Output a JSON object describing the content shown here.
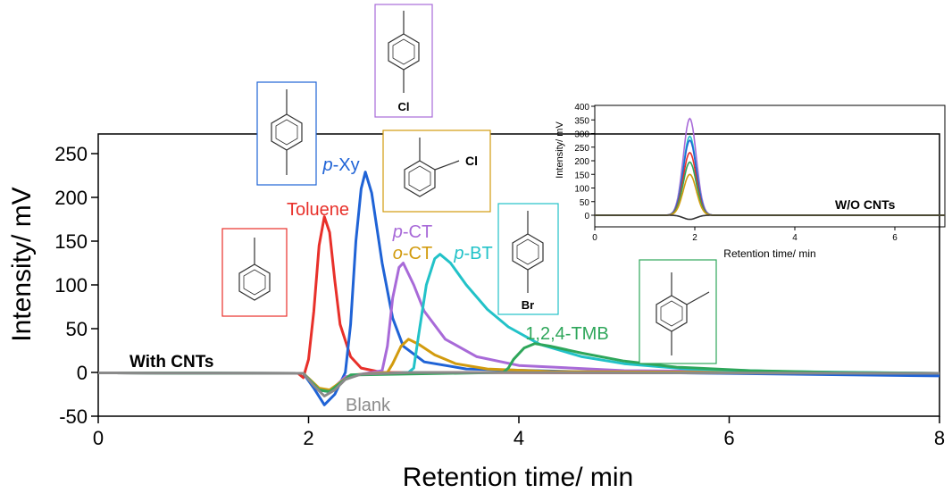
{
  "chart_data": [
    {
      "type": "line",
      "title": "",
      "xlabel": "Retention time/ min",
      "ylabel": "Intensity/ mV",
      "xlim": [
        0,
        8
      ],
      "ylim": [
        -50,
        270
      ],
      "x_ticks": [
        "0",
        "2",
        "4",
        "6",
        "8"
      ],
      "y_ticks": [
        "-50",
        "0",
        "50",
        "100",
        "150",
        "200",
        "250"
      ],
      "grid": false,
      "annotation": "With CNTs",
      "series": [
        {
          "name": "Toluene",
          "color": "#e8302a",
          "points": [
            [
              0,
              -0.5
            ],
            [
              1.9,
              -1
            ],
            [
              1.95,
              -6
            ],
            [
              2.0,
              15
            ],
            [
              2.05,
              70
            ],
            [
              2.1,
              145
            ],
            [
              2.15,
              178
            ],
            [
              2.2,
              160
            ],
            [
              2.25,
              105
            ],
            [
              2.3,
              55
            ],
            [
              2.4,
              18
            ],
            [
              2.5,
              5
            ],
            [
              2.7,
              0
            ],
            [
              8,
              -1
            ]
          ]
        },
        {
          "name": "p-Xy",
          "color": "#1f63d6",
          "points": [
            [
              0,
              -0.5
            ],
            [
              1.95,
              -1
            ],
            [
              2.05,
              -18
            ],
            [
              2.15,
              -37
            ],
            [
              2.25,
              -25
            ],
            [
              2.35,
              0
            ],
            [
              2.4,
              55
            ],
            [
              2.45,
              150
            ],
            [
              2.5,
              210
            ],
            [
              2.54,
              229
            ],
            [
              2.6,
              205
            ],
            [
              2.7,
              125
            ],
            [
              2.8,
              62
            ],
            [
              2.9,
              30
            ],
            [
              3.1,
              12
            ],
            [
              3.5,
              4
            ],
            [
              4.5,
              1
            ],
            [
              8,
              -4
            ]
          ]
        },
        {
          "name": "p-CT",
          "color": "#a86ad8",
          "points": [
            [
              0,
              -0.5
            ],
            [
              1.95,
              -1
            ],
            [
              2.1,
              -20
            ],
            [
              2.2,
              -22
            ],
            [
              2.35,
              -5
            ],
            [
              2.6,
              0
            ],
            [
              2.7,
              2
            ],
            [
              2.75,
              30
            ],
            [
              2.8,
              85
            ],
            [
              2.86,
              120
            ],
            [
              2.9,
              125
            ],
            [
              3.0,
              100
            ],
            [
              3.1,
              70
            ],
            [
              3.3,
              38
            ],
            [
              3.6,
              18
            ],
            [
              4.0,
              8
            ],
            [
              5.0,
              2
            ],
            [
              8,
              -1
            ]
          ]
        },
        {
          "name": "o-CT",
          "color": "#d29b0e",
          "points": [
            [
              0,
              -0.5
            ],
            [
              1.95,
              -1
            ],
            [
              2.1,
              -18
            ],
            [
              2.2,
              -20
            ],
            [
              2.4,
              -3
            ],
            [
              2.75,
              0
            ],
            [
              2.8,
              10
            ],
            [
              2.88,
              30
            ],
            [
              2.95,
              38
            ],
            [
              3.05,
              32
            ],
            [
              3.2,
              20
            ],
            [
              3.4,
              10
            ],
            [
              3.7,
              4
            ],
            [
              4.3,
              1
            ],
            [
              8,
              -1
            ]
          ]
        },
        {
          "name": "p-BT",
          "color": "#22c2c8",
          "points": [
            [
              0,
              -0.5
            ],
            [
              1.95,
              -1
            ],
            [
              2.1,
              -20
            ],
            [
              2.2,
              -22
            ],
            [
              2.4,
              -3
            ],
            [
              2.95,
              0
            ],
            [
              3.0,
              5
            ],
            [
              3.05,
              45
            ],
            [
              3.12,
              100
            ],
            [
              3.2,
              130
            ],
            [
              3.25,
              135
            ],
            [
              3.35,
              125
            ],
            [
              3.5,
              100
            ],
            [
              3.7,
              72
            ],
            [
              3.9,
              52
            ],
            [
              4.2,
              32
            ],
            [
              4.6,
              18
            ],
            [
              5.0,
              10
            ],
            [
              5.6,
              4
            ],
            [
              6.5,
              1
            ],
            [
              8,
              -1
            ]
          ]
        },
        {
          "name": "1,2,4-TMB",
          "color": "#2ea65a",
          "points": [
            [
              0,
              -0.5
            ],
            [
              1.95,
              -1
            ],
            [
              2.1,
              -20
            ],
            [
              2.2,
              -22
            ],
            [
              2.4,
              -3
            ],
            [
              3.85,
              0
            ],
            [
              3.9,
              5
            ],
            [
              3.95,
              15
            ],
            [
              4.05,
              28
            ],
            [
              4.15,
              33
            ],
            [
              4.3,
              30
            ],
            [
              4.6,
              22
            ],
            [
              5.0,
              13
            ],
            [
              5.5,
              6
            ],
            [
              6.2,
              2
            ],
            [
              7,
              0
            ],
            [
              8,
              -1
            ]
          ]
        },
        {
          "name": "Blank",
          "color": "#8a8a8a",
          "points": [
            [
              0,
              -0.5
            ],
            [
              1.95,
              -1
            ],
            [
              2.05,
              -15
            ],
            [
              2.15,
              -27
            ],
            [
              2.25,
              -20
            ],
            [
              2.35,
              -8
            ],
            [
              2.5,
              -2
            ],
            [
              3,
              0
            ],
            [
              8,
              -1
            ]
          ]
        }
      ],
      "structure_labels": {
        "p_ct": "Cl",
        "o_ct": "Cl",
        "p_bt": "Br"
      }
    },
    {
      "type": "line",
      "title": "",
      "xlabel": "Retention time/ min",
      "ylabel": "Intensity/ mV",
      "xlim": [
        0,
        7
      ],
      "ylim": [
        -20,
        400
      ],
      "x_ticks": [
        "0",
        "2",
        "4",
        "6"
      ],
      "y_ticks": [
        "0",
        "50",
        "100",
        "150",
        "200",
        "250",
        "300",
        "350",
        "400"
      ],
      "grid": false,
      "annotation": "W/O CNTs",
      "series": [
        {
          "color": "#a86ad8",
          "peak": 355
        },
        {
          "color": "#22c2c8",
          "peak": 290
        },
        {
          "color": "#1f63d6",
          "peak": 275
        },
        {
          "color": "#e8302a",
          "peak": 230
        },
        {
          "color": "#2ea65a",
          "peak": 195
        },
        {
          "color": "#d29b0e",
          "peak": 150
        },
        {
          "color": "#333333",
          "peak": -15
        }
      ]
    }
  ]
}
